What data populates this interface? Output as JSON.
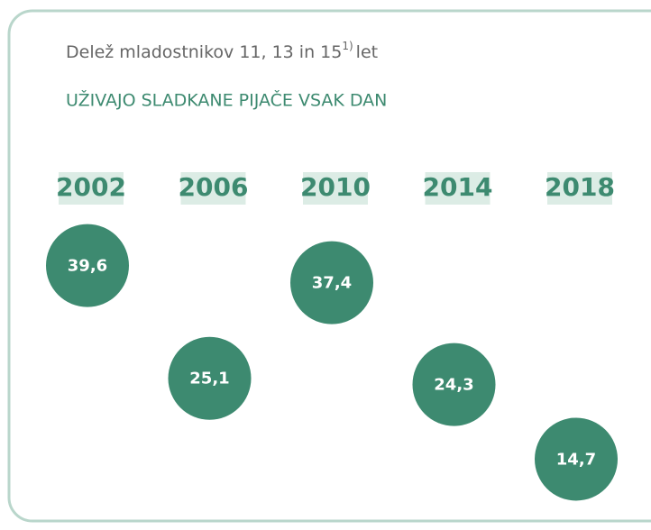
{
  "chart_data": {
    "type": "dot",
    "title": "Delež mladostnikov 11, 13 in 15",
    "title_superscript": "1)",
    "title_suffix": "let",
    "subtitle": "UŽIVAJO SLADKANE PIJAČE VSAK DAN",
    "categories": [
      "2002",
      "2006",
      "2010",
      "2014",
      "2018"
    ],
    "values": [
      39.6,
      25.1,
      37.4,
      24.3,
      14.7
    ],
    "value_labels": [
      "39,6",
      "25,1",
      "37,4",
      "24,3",
      "14,7"
    ],
    "color": "#3d8a70",
    "ylim": [
      10,
      45
    ]
  }
}
